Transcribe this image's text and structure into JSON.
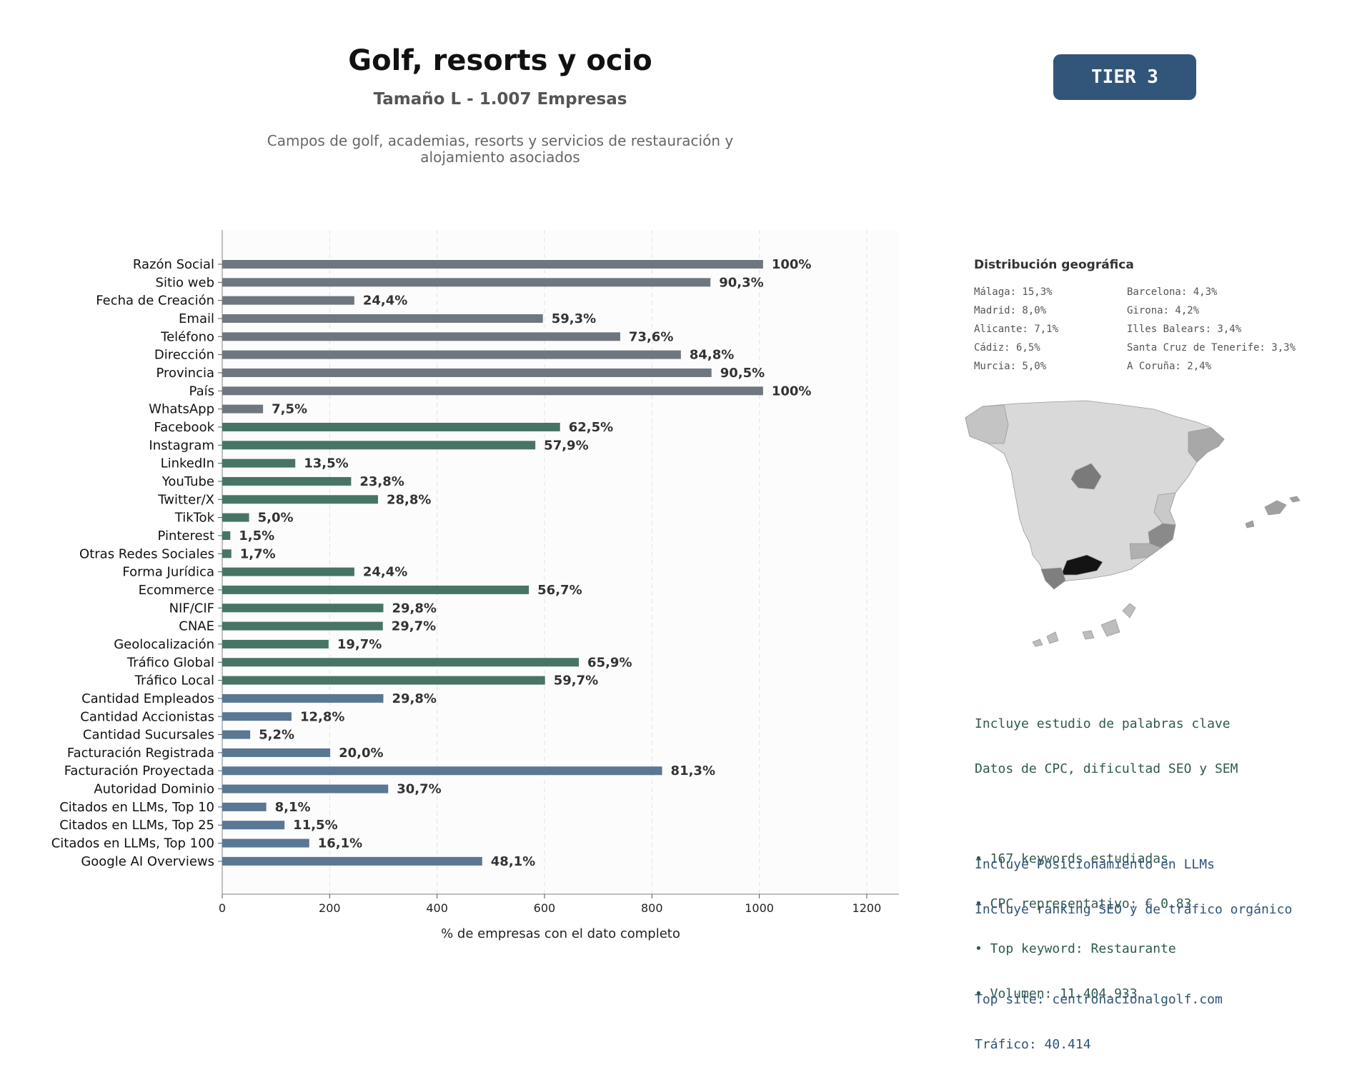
{
  "header": {
    "title": "Golf, resorts y ocio",
    "subtitle": "Tamaño L - 1.007 Empresas",
    "description": "Campos de golf, academias, resorts y servicios de restauración y alojamiento asociados",
    "tier_badge": "TIER 3"
  },
  "colors": {
    "contact": "#6e7780",
    "social": "#477565",
    "business": "#5a7794",
    "badge": "#32567a"
  },
  "chart_data": {
    "type": "bar",
    "orientation": "horizontal",
    "xlabel": "% de empresas con el dato completo",
    "xlim": [
      0,
      1260
    ],
    "xticks": [
      0,
      200,
      400,
      600,
      800,
      1000,
      1200
    ],
    "grid": "vertical dashed",
    "categories": [
      "Razón Social",
      "Sitio web",
      "Fecha de Creación",
      "Email",
      "Teléfono",
      "Dirección",
      "Provincia",
      "País",
      "WhatsApp",
      "Facebook",
      "Instagram",
      "LinkedIn",
      "YouTube",
      "Twitter/X",
      "TikTok",
      "Pinterest",
      "Otras Redes Sociales",
      "Forma Jurídica",
      "Ecommerce",
      "NIF/CIF",
      "CNAE",
      "Geolocalización",
      "Tráfico Global",
      "Tráfico Local",
      "Cantidad Empleados",
      "Cantidad Accionistas",
      "Cantidad Sucursales",
      "Facturación Registrada",
      "Facturación Proyectada",
      "Autoridad Dominio",
      "Citados en LLMs, Top 10",
      "Citados en LLMs, Top 25",
      "Citados en LLMs, Top 100",
      "Google AI Overviews"
    ],
    "values": [
      1007,
      909,
      246,
      597,
      741,
      854,
      911,
      1007,
      76,
      629,
      583,
      136,
      240,
      290,
      50,
      15,
      17,
      246,
      571,
      300,
      299,
      198,
      664,
      601,
      300,
      129,
      52,
      201,
      819,
      309,
      82,
      116,
      162,
      484
    ],
    "labels": [
      "100%",
      "90,3%",
      "24,4%",
      "59,3%",
      "73,6%",
      "84,8%",
      "90,5%",
      "100%",
      "7,5%",
      "62,5%",
      "57,9%",
      "13,5%",
      "23,8%",
      "28,8%",
      "5,0%",
      "1,5%",
      "1,7%",
      "24,4%",
      "56,7%",
      "29,8%",
      "29,7%",
      "19,7%",
      "65,9%",
      "59,7%",
      "29,8%",
      "12,8%",
      "5,2%",
      "20,0%",
      "81,3%",
      "30,7%",
      "8,1%",
      "11,5%",
      "16,1%",
      "48,1%"
    ],
    "groups": [
      "contact",
      "contact",
      "contact",
      "contact",
      "contact",
      "contact",
      "contact",
      "contact",
      "contact",
      "social",
      "social",
      "social",
      "social",
      "social",
      "social",
      "social",
      "social",
      "social",
      "social",
      "social",
      "social",
      "social",
      "social",
      "social",
      "business",
      "business",
      "business",
      "business",
      "business",
      "business",
      "business",
      "business",
      "business",
      "business"
    ]
  },
  "geo": {
    "title": "Distribución geográfica",
    "items": [
      "Málaga: 15,3%",
      "Barcelona: 4,3%",
      "Madrid: 8,0%",
      "Girona: 4,2%",
      "Alicante: 7,1%",
      "Illes Balears: 3,4%",
      "Cádiz: 6,5%",
      "Santa Cruz de Tenerife: 3,3%",
      "Murcia: 5,0%",
      "A Coruña: 2,4%"
    ]
  },
  "keywords": {
    "lines": [
      "Incluye estudio de palabras clave",
      "Datos de CPC, dificultad SEO y SEM",
      "",
      "• 167 keywords estudiadas",
      "• CPC representativo: € 0.83",
      "• Top keyword: Restaurante",
      "• Volumen: 11.404.933"
    ]
  },
  "llm": {
    "lines": [
      "Incluye Posicionamiento en LLMs",
      "Incluye ranking SEO y de tráfico orgánico",
      "",
      "Top site: centronacionalgolf.com",
      "Tráfico: 40.414"
    ]
  }
}
